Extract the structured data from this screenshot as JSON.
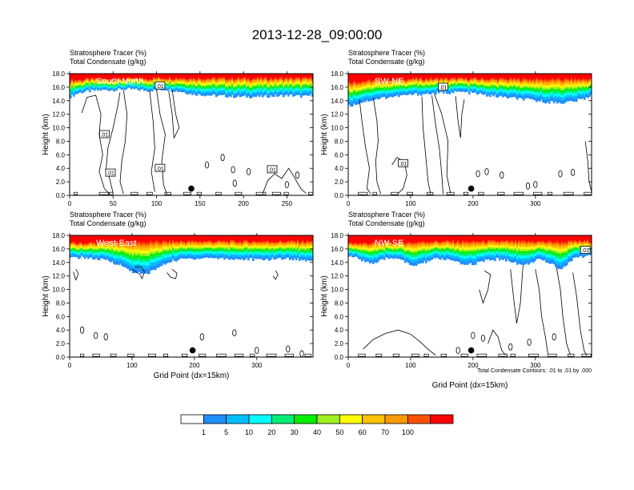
{
  "title": "2013-12-28_09:00:00",
  "panels": [
    {
      "id": "south-north",
      "title_lines": [
        "Stratosphere Tracer   (%)",
        "Total Condensate   (g/kg)"
      ],
      "section_label": "South-North",
      "ylabel": "Height (km)",
      "xlabel": "",
      "xlim": [
        0,
        280
      ],
      "xticks": [
        0,
        50,
        100,
        150,
        200,
        250
      ],
      "ylim": [
        0,
        18
      ],
      "yticks": [
        "0.0",
        "2.0",
        "4.0",
        "6.0",
        "8.0",
        "10.0",
        "12.0",
        "14.0",
        "16.0",
        "18.0"
      ],
      "marker": {
        "x": 140,
        "y": 1.0
      },
      "contour_labels": [
        {
          "text": ".01",
          "x": 104,
          "y": 16.2
        },
        {
          "text": ".01",
          "x": 40,
          "y": 9.0
        },
        {
          "text": ".01",
          "x": 47,
          "y": 3.3
        },
        {
          "text": ".01",
          "x": 104,
          "y": 4.0
        },
        {
          "text": ".01",
          "x": 233,
          "y": 3.8
        }
      ],
      "note": ""
    },
    {
      "id": "sw-ne",
      "title_lines": [
        "Stratosphere Tracer   (%)",
        "Total Condensate   (g/kg)"
      ],
      "section_label": "SW-NE",
      "ylabel": "Height (km)",
      "xlabel": "",
      "xlim": [
        0,
        390
      ],
      "xticks": [
        0,
        100,
        200,
        300
      ],
      "ylim": [
        0,
        18
      ],
      "yticks": [
        "0.0",
        "2.0",
        "4.0",
        "6.0",
        "8.0",
        "10.0",
        "12.0",
        "14.0",
        "16.0",
        "18.0"
      ],
      "marker": {
        "x": 197,
        "y": 1.0
      },
      "contour_labels": [
        {
          "text": ".01",
          "x": 152,
          "y": 16.0
        },
        {
          "text": ".01",
          "x": 88,
          "y": 4.7
        }
      ],
      "note": ""
    },
    {
      "id": "west-east",
      "title_lines": [
        "Stratosphere Tracer   (%)",
        "Total Condensate   (g/kg)"
      ],
      "section_label": "West-East",
      "ylabel": "Height (km)",
      "xlabel": "Grid Point (dx=15km)",
      "xlim": [
        0,
        390
      ],
      "xticks": [
        0,
        100,
        200,
        300
      ],
      "ylim": [
        0,
        18
      ],
      "yticks": [
        "0.0",
        "2.0",
        "4.0",
        "6.0",
        "8.0",
        "10.0",
        "12.0",
        "14.0",
        "16.0",
        "18.0"
      ],
      "marker": {
        "x": 197,
        "y": 1.0
      },
      "contour_labels": [],
      "note": ""
    },
    {
      "id": "nw-se",
      "title_lines": [
        "Stratosphere Tracer   (%)",
        "Total Condensate   (g/kg)"
      ],
      "section_label": "NW-SE",
      "ylabel": "Height (km)",
      "xlabel": "Grid Point (dx=15km)",
      "xlim": [
        0,
        390
      ],
      "xticks": [
        0,
        100,
        200,
        300
      ],
      "ylim": [
        0,
        18
      ],
      "yticks": [
        "0.0",
        "2.0",
        "4.0",
        "6.0",
        "8.0",
        "10.0",
        "12.0",
        "14.0",
        "16.0",
        "18.0"
      ],
      "marker": {
        "x": 197,
        "y": 1.0
      },
      "contour_labels": [
        {
          "text": ".01",
          "x": 380,
          "y": 15.8
        }
      ],
      "note": "Total Condensate Contours: .01 to .01 by .000"
    }
  ],
  "colorbar": {
    "labels": [
      "1",
      "5",
      "10",
      "20",
      "30",
      "40",
      "50",
      "60",
      "70",
      "100"
    ],
    "colors": [
      "#ffffff",
      "#1e8fff",
      "#00bfff",
      "#00ffff",
      "#00ee76",
      "#00ee00",
      "#a0ee20",
      "#ffff00",
      "#ffc100",
      "#ff9a00",
      "#ff5000",
      "#ff0000"
    ]
  },
  "chart_data": [
    {
      "type": "heatmap",
      "title": "South-North",
      "variable": "Stratosphere Tracer (%) with Total Condensate (g/kg) contours",
      "xlabel": "",
      "ylabel": "Height (km)",
      "xlim": [
        0,
        280
      ],
      "ylim": [
        0,
        18
      ],
      "levels": [
        1,
        5,
        10,
        20,
        30,
        40,
        50,
        60,
        70,
        100
      ],
      "x": [
        0,
        10,
        20,
        30,
        40,
        50,
        60,
        70,
        80,
        90,
        100,
        110,
        120,
        130,
        140,
        150,
        160,
        170,
        180,
        190,
        200,
        210,
        220,
        230,
        240,
        250,
        260,
        270,
        280
      ],
      "tracer_boundary_km": [
        14.6,
        15.2,
        15.4,
        15.5,
        15.6,
        15.6,
        15.7,
        15.7,
        15.6,
        15.5,
        15.6,
        15.7,
        15.5,
        15.3,
        15.0,
        14.9,
        14.8,
        14.7,
        14.7,
        14.6,
        14.6,
        14.6,
        14.6,
        14.7,
        14.7,
        14.8,
        14.7,
        14.6,
        14.9
      ],
      "tracer_100pct_km": [
        17.2,
        17.2,
        17.3,
        17.3,
        17.3,
        17.3,
        17.3,
        17.4,
        17.4,
        17.4,
        17.5,
        17.5,
        17.5,
        17.5,
        17.5,
        17.5,
        17.5,
        17.5,
        17.5,
        17.5,
        17.5,
        17.5,
        17.5,
        17.5,
        17.5,
        17.5,
        17.5,
        17.5,
        17.5
      ],
      "marker": {
        "x": 140,
        "y": 1.0
      }
    },
    {
      "type": "heatmap",
      "title": "SW-NE",
      "variable": "Stratosphere Tracer (%) with Total Condensate (g/kg) contours",
      "xlabel": "",
      "ylabel": "Height (km)",
      "xlim": [
        0,
        390
      ],
      "ylim": [
        0,
        18
      ],
      "levels": [
        1,
        5,
        10,
        20,
        30,
        40,
        50,
        60,
        70,
        100
      ],
      "x": [
        0,
        20,
        40,
        60,
        80,
        100,
        120,
        140,
        160,
        180,
        200,
        220,
        240,
        260,
        280,
        300,
        320,
        340,
        360,
        380,
        390
      ],
      "tracer_boundary_km": [
        13.2,
        13.8,
        14.2,
        14.5,
        14.7,
        14.9,
        15.0,
        15.1,
        15.2,
        15.3,
        15.1,
        14.8,
        14.6,
        14.4,
        14.2,
        14.0,
        13.8,
        13.7,
        13.9,
        14.4,
        15.0
      ],
      "tracer_100pct_km": [
        17.0,
        17.1,
        17.2,
        17.3,
        17.3,
        17.4,
        17.4,
        17.4,
        17.4,
        17.4,
        17.4,
        17.4,
        17.4,
        17.4,
        17.4,
        17.4,
        17.4,
        17.4,
        17.4,
        17.4,
        17.4
      ],
      "marker": {
        "x": 197,
        "y": 1.0
      }
    },
    {
      "type": "heatmap",
      "title": "West-East",
      "variable": "Stratosphere Tracer (%) with Total Condensate (g/kg) contours",
      "xlabel": "Grid Point (dx=15km)",
      "ylabel": "Height (km)",
      "xlim": [
        0,
        390
      ],
      "ylim": [
        0,
        18
      ],
      "levels": [
        1,
        5,
        10,
        20,
        30,
        40,
        50,
        60,
        70,
        100
      ],
      "x": [
        0,
        20,
        40,
        60,
        80,
        100,
        120,
        140,
        160,
        180,
        200,
        220,
        240,
        260,
        280,
        300,
        320,
        340,
        360,
        380,
        390
      ],
      "tracer_boundary_km": [
        14.6,
        14.8,
        14.5,
        14.3,
        13.6,
        12.6,
        12.2,
        13.2,
        14.2,
        14.5,
        14.6,
        14.7,
        14.6,
        14.5,
        14.5,
        14.4,
        14.5,
        14.6,
        14.5,
        14.3,
        14.4
      ],
      "tracer_100pct_km": [
        17.0,
        17.0,
        17.1,
        17.2,
        17.3,
        17.3,
        17.3,
        17.3,
        17.3,
        17.3,
        17.3,
        17.3,
        17.3,
        17.3,
        17.3,
        17.3,
        17.3,
        17.3,
        17.3,
        17.3,
        17.3
      ],
      "marker": {
        "x": 197,
        "y": 1.0
      }
    },
    {
      "type": "heatmap",
      "title": "NW-SE",
      "variable": "Stratosphere Tracer (%) with Total Condensate (g/kg) contours",
      "xlabel": "Grid Point (dx=15km)",
      "ylabel": "Height (km)",
      "xlim": [
        0,
        390
      ],
      "ylim": [
        0,
        18
      ],
      "levels": [
        1,
        5,
        10,
        20,
        30,
        40,
        50,
        60,
        70,
        100
      ],
      "x": [
        0,
        20,
        40,
        60,
        80,
        100,
        120,
        140,
        160,
        180,
        200,
        220,
        240,
        260,
        280,
        300,
        320,
        340,
        360,
        380,
        390
      ],
      "tracer_boundary_km": [
        15.0,
        14.4,
        13.8,
        14.6,
        14.7,
        13.4,
        14.0,
        14.6,
        14.4,
        13.7,
        13.8,
        14.3,
        14.5,
        14.2,
        13.5,
        14.4,
        14.0,
        13.0,
        14.6,
        15.0,
        15.2
      ],
      "tracer_100pct_km": [
        17.0,
        17.0,
        17.1,
        17.1,
        17.2,
        17.2,
        17.3,
        17.3,
        17.3,
        17.3,
        17.3,
        17.3,
        17.3,
        17.3,
        17.3,
        17.3,
        17.3,
        17.3,
        17.3,
        17.3,
        17.3
      ],
      "marker": {
        "x": 197,
        "y": 1.0
      }
    }
  ]
}
